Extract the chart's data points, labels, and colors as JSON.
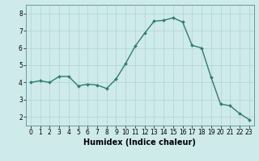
{
  "x": [
    0,
    1,
    2,
    3,
    4,
    5,
    6,
    7,
    8,
    9,
    10,
    11,
    12,
    13,
    14,
    15,
    16,
    17,
    18,
    19,
    20,
    21,
    22,
    23
  ],
  "y": [
    4.0,
    4.1,
    4.0,
    4.35,
    4.35,
    3.8,
    3.9,
    3.85,
    3.65,
    4.2,
    5.1,
    6.1,
    6.85,
    7.55,
    7.6,
    7.75,
    7.5,
    6.15,
    6.0,
    4.3,
    2.75,
    2.65,
    2.2,
    1.85
  ],
  "line_color": "#2e7d6e",
  "marker": "D",
  "marker_size": 2.0,
  "linewidth": 1.0,
  "bg_color": "#ceeaea",
  "grid_color": "#b0d4d4",
  "xlabel": "Humidex (Indice chaleur)",
  "ylim": [
    1.5,
    8.5
  ],
  "xlim": [
    -0.5,
    23.5
  ],
  "yticks": [
    2,
    3,
    4,
    5,
    6,
    7,
    8
  ],
  "xticks": [
    0,
    1,
    2,
    3,
    4,
    5,
    6,
    7,
    8,
    9,
    10,
    11,
    12,
    13,
    14,
    15,
    16,
    17,
    18,
    19,
    20,
    21,
    22,
    23
  ],
  "tick_label_size": 5.5,
  "xlabel_size": 7.0,
  "xlabel_weight": "bold"
}
